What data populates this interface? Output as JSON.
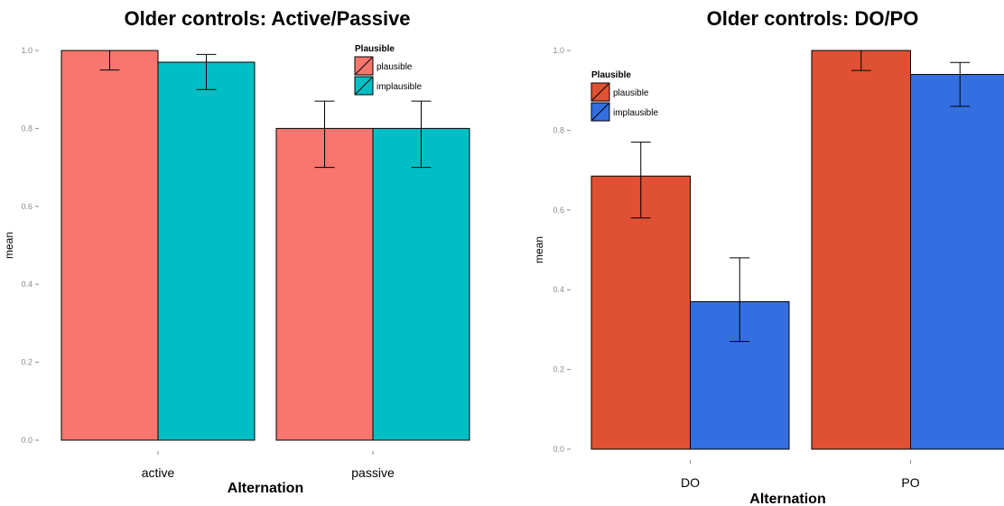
{
  "chart_data": [
    {
      "type": "bar",
      "title": "Older controls: Active/Passive",
      "xlabel": "Alternation",
      "ylabel": "mean",
      "ylim": [
        0,
        1.0
      ],
      "yticks": [
        "0.0",
        "0.2",
        "0.4",
        "0.6",
        "0.8",
        "1.0"
      ],
      "categories": [
        "active",
        "passive"
      ],
      "legend": {
        "title": "Plausible",
        "position": "top-right"
      },
      "grid": false,
      "series": [
        {
          "name": "plausible",
          "color": "#F8766D",
          "values": [
            1.0,
            0.8
          ],
          "err_low": [
            0.95,
            0.7
          ],
          "err_high": [
            1.0,
            0.87
          ]
        },
        {
          "name": "implausible",
          "color": "#00BFC4",
          "values": [
            0.97,
            0.8
          ],
          "err_low": [
            0.9,
            0.7
          ],
          "err_high": [
            0.99,
            0.87
          ]
        }
      ]
    },
    {
      "type": "bar",
      "title": "Older controls: DO/PO",
      "xlabel": "Alternation",
      "ylabel": "mean",
      "ylim": [
        0,
        1.0
      ],
      "yticks": [
        "0.0",
        "0.2",
        "0.4",
        "0.6",
        "0.8",
        "1.0"
      ],
      "categories": [
        "DO",
        "PO"
      ],
      "legend": {
        "title": "Plausible",
        "position": "top-left"
      },
      "grid": false,
      "series": [
        {
          "name": "plausible",
          "color": "#E05133",
          "values": [
            0.685,
            1.0
          ],
          "err_low": [
            0.58,
            0.95
          ],
          "err_high": [
            0.77,
            1.0
          ]
        },
        {
          "name": "implausible",
          "color": "#336FE0",
          "values": [
            0.37,
            0.94
          ],
          "err_low": [
            0.27,
            0.86
          ],
          "err_high": [
            0.48,
            0.97
          ]
        }
      ]
    }
  ]
}
